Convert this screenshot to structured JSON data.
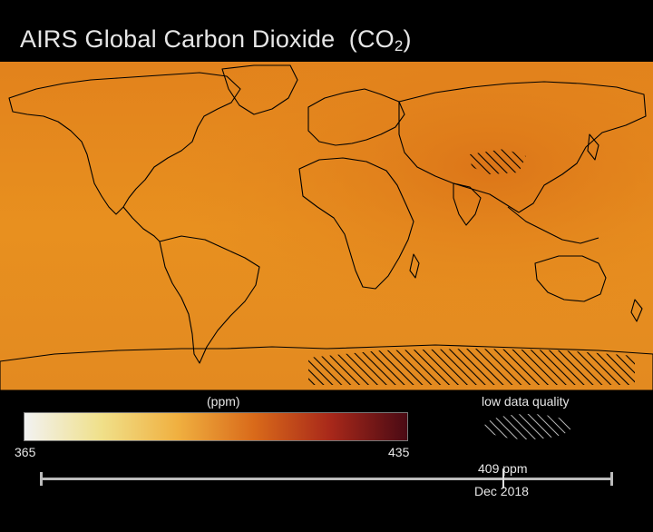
{
  "title": "AIRS Global Carbon Dioxide",
  "title_formula_main": "(CO",
  "title_formula_sub": "2",
  "title_formula_end": ")",
  "colorbar": {
    "unit": "(ppm)",
    "min": "365",
    "max": "435",
    "colors": [
      "#f2f2f2",
      "#f0e08a",
      "#f0b040",
      "#d96a1a",
      "#a8281a",
      "#4a0a14"
    ]
  },
  "legend": {
    "low_quality_label": "low data quality"
  },
  "timeline": {
    "value": "409 ppm",
    "date": "Dec 2018"
  },
  "map": {
    "base_color": "#e58a1f",
    "land_outline_color": "#000000",
    "hatch_color": "#000000"
  }
}
